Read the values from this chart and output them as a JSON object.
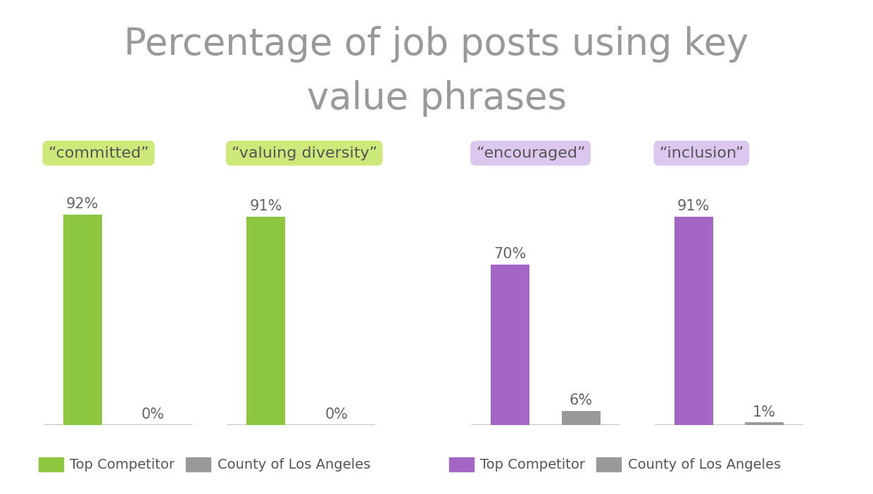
{
  "title_line1": "Percentage of job posts using key",
  "title_line2": "value phrases",
  "groups": [
    {
      "label": "“committed”",
      "label_bg": "#cde97a",
      "color": "#8dc63f",
      "competitor_val": 92,
      "la_val": 0
    },
    {
      "label": "“valuing diversity”",
      "label_bg": "#cde97a",
      "color": "#8dc63f",
      "competitor_val": 91,
      "la_val": 0
    },
    {
      "label": "“encouraged”",
      "label_bg": "#dcc8ee",
      "color": "#a366c4",
      "competitor_val": 70,
      "la_val": 6
    },
    {
      "label": "“inclusion”",
      "label_bg": "#dcc8ee",
      "color": "#a366c4",
      "competitor_val": 91,
      "la_val": 1
    }
  ],
  "legend_green_color": "#8dc63f",
  "legend_purple_color": "#a366c4",
  "legend_gray_color": "#999999",
  "background_color": "#ffffff",
  "title_color": "#999999",
  "bar_gray_color": "#999999",
  "title_fontsize": 38,
  "label_fontsize": 16,
  "pct_fontsize": 15,
  "legend_fontsize": 14
}
